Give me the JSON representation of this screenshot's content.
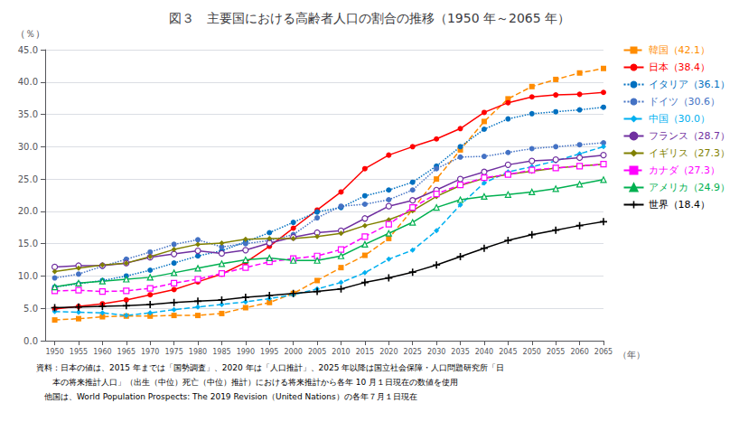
{
  "chart_data": {
    "type": "line",
    "title": "図３　主要国における高齢者人口の割合の推移（1950 年～2065 年）",
    "ylabel": "（％）",
    "xlabel": "（年）",
    "annotations": [
      "資料：日本の値は、2015 年までは「国勢調査」、2020 年は「人口推計」、2025 年以降は国立社会保障・人口問題研究所「日",
      "　　本の将来推計人口」（出生（中位）死亡（中位）推計）における将来推計から各年 10 月１日現在の数値を使用",
      "　他国は、World Population Prospects: The 2019 Revision（United Nations）の各年７月１日現在"
    ],
    "x": [
      1950,
      1955,
      1960,
      1965,
      1970,
      1975,
      1980,
      1985,
      1990,
      1995,
      2000,
      2005,
      2010,
      2015,
      2020,
      2025,
      2030,
      2035,
      2040,
      2045,
      2050,
      2055,
      2060,
      2065
    ],
    "xlim": [
      1948,
      2065
    ],
    "xticks": [
      1950,
      1955,
      1960,
      1965,
      1970,
      1975,
      1980,
      1985,
      1990,
      1995,
      2000,
      2005,
      2010,
      2015,
      2020,
      2025,
      2030,
      2035,
      2040,
      2045,
      2050,
      2055,
      2060,
      2065
    ],
    "ylim": [
      0.0,
      45.0
    ],
    "yticks": [
      {
        "value": 0.0,
        "label": "0.0"
      },
      {
        "value": 5.0,
        "label": "5.0"
      },
      {
        "value": 10.0,
        "label": "10.0"
      },
      {
        "value": 15.0,
        "label": "15.0"
      },
      {
        "value": 20.0,
        "label": "20.0"
      },
      {
        "value": 25.0,
        "label": "25.0"
      },
      {
        "value": 30.0,
        "label": "30.0"
      },
      {
        "value": 35.0,
        "label": "35.0"
      },
      {
        "value": 40.0,
        "label": "40.0"
      },
      {
        "value": 45.0,
        "label": "45.0"
      }
    ],
    "grid": true,
    "legend": "right",
    "series": [
      {
        "name": "韓国（42.1）",
        "color": "#FF8C00",
        "marker": "square",
        "line_style": "dashed",
        "values": [
          3.2,
          3.4,
          3.7,
          3.8,
          3.8,
          3.9,
          3.9,
          4.2,
          5.1,
          5.9,
          7.3,
          9.3,
          11.3,
          13.2,
          15.8,
          20.3,
          25.0,
          29.5,
          33.9,
          37.4,
          39.3,
          40.4,
          41.4,
          42.1
        ]
      },
      {
        "name": "日本（38.4）",
        "color": "#FF0000",
        "marker": "circle",
        "line_style": "solid",
        "values": [
          4.9,
          5.3,
          5.7,
          6.3,
          7.1,
          7.9,
          9.1,
          10.3,
          12.1,
          14.6,
          17.4,
          20.2,
          23.0,
          26.6,
          28.7,
          30.0,
          31.2,
          32.8,
          35.3,
          36.8,
          37.7,
          38.0,
          38.1,
          38.4
        ]
      },
      {
        "name": "イタリア（36.1）",
        "color": "#0070C0",
        "marker": "circle",
        "line_style": "dotted",
        "values": [
          8.3,
          8.8,
          9.3,
          10.0,
          10.9,
          12.0,
          13.1,
          13.9,
          15.3,
          16.7,
          18.3,
          19.9,
          20.6,
          22.4,
          23.3,
          24.5,
          27.0,
          30.0,
          32.7,
          34.3,
          35.1,
          35.4,
          35.7,
          36.1
        ]
      },
      {
        "name": "ドイツ（30.6）",
        "color": "#4472C4",
        "marker": "circle",
        "line_style": "dotted",
        "values": [
          9.7,
          10.3,
          11.5,
          12.6,
          13.7,
          14.9,
          15.6,
          14.5,
          15.0,
          15.5,
          16.4,
          19.0,
          20.8,
          21.1,
          21.8,
          23.3,
          26.6,
          28.4,
          28.5,
          29.1,
          29.7,
          30.0,
          30.3,
          30.6
        ]
      },
      {
        "name": "中国（30.0）",
        "color": "#00B0F0",
        "marker": "diamond",
        "line_style": "dashed",
        "values": [
          4.5,
          4.4,
          4.3,
          3.9,
          4.3,
          4.8,
          5.2,
          5.6,
          6.0,
          6.5,
          7.1,
          8.0,
          9.0,
          10.5,
          12.6,
          14.0,
          17.0,
          21.0,
          24.4,
          26.1,
          26.9,
          27.8,
          28.9,
          30.0
        ]
      },
      {
        "name": "フランス（28.7）",
        "color": "#7030A0",
        "marker": "open-circle",
        "line_style": "solid",
        "values": [
          11.4,
          11.6,
          11.6,
          12.0,
          12.9,
          13.4,
          13.9,
          13.5,
          14.0,
          15.1,
          16.0,
          16.7,
          17.0,
          18.9,
          20.8,
          21.7,
          23.3,
          25.0,
          26.1,
          27.2,
          27.8,
          28.0,
          28.3,
          28.7
        ]
      },
      {
        "name": "イギリス（27.3）",
        "color": "#808000",
        "marker": "diamond",
        "line_style": "solid",
        "values": [
          10.7,
          11.2,
          11.7,
          12.0,
          13.0,
          14.1,
          14.9,
          15.1,
          15.7,
          15.8,
          15.8,
          16.1,
          16.6,
          17.8,
          18.7,
          20.1,
          22.3,
          24.0,
          25.1,
          25.7,
          26.2,
          26.7,
          27.0,
          27.3
        ]
      },
      {
        "name": "カナダ（27.3）",
        "color": "#FF00FF",
        "marker": "open-square",
        "line_style": "dashed",
        "values": [
          7.7,
          7.8,
          7.6,
          7.7,
          8.1,
          8.9,
          9.5,
          10.4,
          11.3,
          12.2,
          12.7,
          13.1,
          14.1,
          16.1,
          18.0,
          20.6,
          22.7,
          24.1,
          25.2,
          25.7,
          26.4,
          26.7,
          27.0,
          27.3
        ]
      },
      {
        "name": "アメリカ（24.9）",
        "color": "#00B050",
        "marker": "open-triangle",
        "line_style": "solid",
        "values": [
          8.3,
          8.9,
          9.2,
          9.5,
          9.8,
          10.5,
          11.2,
          11.9,
          12.5,
          12.8,
          12.4,
          12.4,
          13.1,
          14.9,
          16.6,
          18.3,
          20.6,
          21.8,
          22.3,
          22.6,
          23.0,
          23.5,
          24.2,
          24.9
        ]
      },
      {
        "name": "世界（18.4）",
        "color": "#000000",
        "marker": "plus",
        "line_style": "solid",
        "values": [
          5.1,
          5.2,
          5.3,
          5.4,
          5.6,
          5.9,
          6.1,
          6.3,
          6.7,
          7.0,
          7.3,
          7.6,
          8.0,
          9.0,
          9.7,
          10.6,
          11.7,
          13.0,
          14.3,
          15.5,
          16.4,
          17.1,
          17.8,
          18.4
        ]
      }
    ]
  }
}
